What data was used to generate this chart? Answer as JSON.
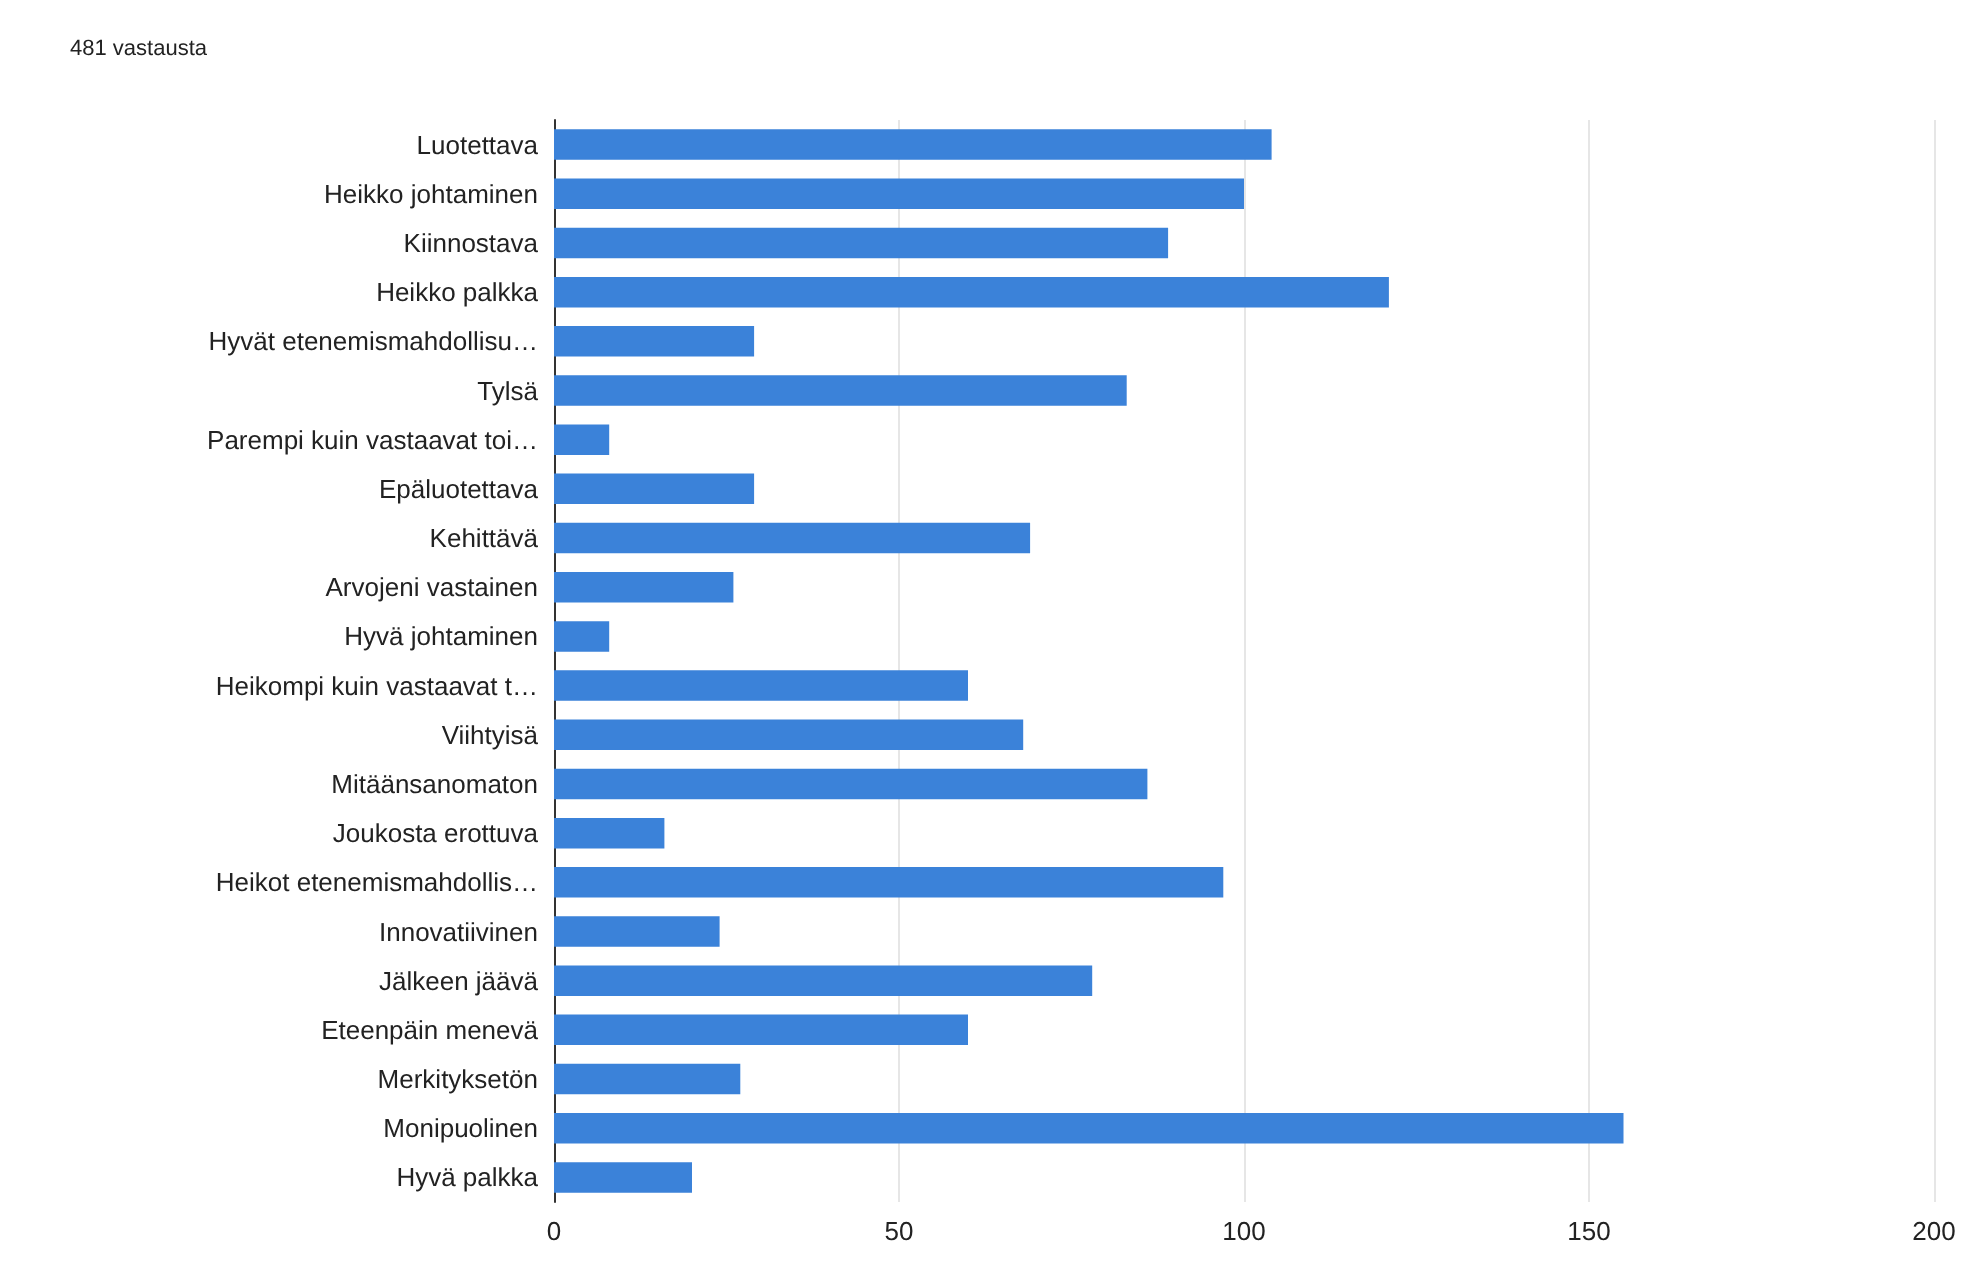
{
  "chart_data": {
    "type": "bar",
    "orientation": "horizontal",
    "subtitle": "481 vastausta",
    "categories": [
      "Luotettava",
      "Heikko johtaminen",
      "Kiinnostava",
      "Heikko palkka",
      "Hyvät etenemismahdollisu…",
      "Tylsä",
      "Parempi kuin vastaavat toi…",
      "Epäluotettava",
      "Kehittävä",
      "Arvojeni vastainen",
      "Hyvä johtaminen",
      "Heikompi kuin vastaavat t…",
      "Viihtyisä",
      "Mitäänsanomaton",
      "Joukosta erottuva",
      "Heikot etenemismahdollis…",
      "Innovatiivinen",
      "Jälkeen jäävä",
      "Eteenpäin menevä",
      "Merkityksetön",
      "Monipuolinen",
      "Hyvä palkka"
    ],
    "values": [
      104,
      100,
      89,
      121,
      29,
      83,
      8,
      29,
      69,
      26,
      8,
      60,
      68,
      86,
      16,
      97,
      24,
      78,
      60,
      27,
      155,
      20
    ],
    "color": "#3b82d9",
    "xlim": [
      0,
      200
    ],
    "xticks": [
      0,
      50,
      100,
      150,
      200
    ],
    "grid": "x"
  }
}
